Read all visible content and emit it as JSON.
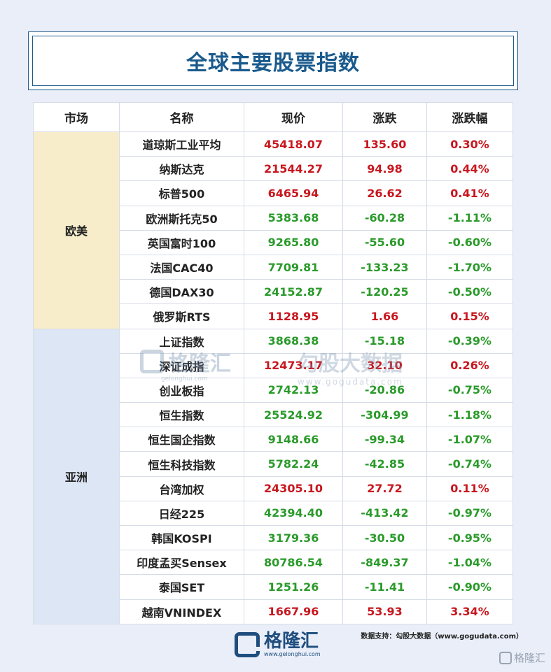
{
  "title": "全球主要股票指数",
  "headers": [
    "市场",
    "名称",
    "现价",
    "涨跌",
    "涨跌幅"
  ],
  "regions": [
    {
      "name": "欧美",
      "rows": [
        {
          "name": "道琼斯工业平均",
          "price": "45418.07",
          "change": "135.60",
          "pct": "0.30%",
          "dir": "up"
        },
        {
          "name": "纳斯达克",
          "price": "21544.27",
          "change": "94.98",
          "pct": "0.44%",
          "dir": "up"
        },
        {
          "name": "标普500",
          "price": "6465.94",
          "change": "26.62",
          "pct": "0.41%",
          "dir": "up"
        },
        {
          "name": "欧洲斯托克50",
          "price": "5383.68",
          "change": "-60.28",
          "pct": "-1.11%",
          "dir": "down"
        },
        {
          "name": "英国富时100",
          "price": "9265.80",
          "change": "-55.60",
          "pct": "-0.60%",
          "dir": "down"
        },
        {
          "name": "法国CAC40",
          "price": "7709.81",
          "change": "-133.23",
          "pct": "-1.70%",
          "dir": "down"
        },
        {
          "name": "德国DAX30",
          "price": "24152.87",
          "change": "-120.25",
          "pct": "-0.50%",
          "dir": "down"
        },
        {
          "name": "俄罗斯RTS",
          "price": "1128.95",
          "change": "1.66",
          "pct": "0.15%",
          "dir": "up"
        }
      ]
    },
    {
      "name": "亚洲",
      "rows": [
        {
          "name": "上证指数",
          "price": "3868.38",
          "change": "-15.18",
          "pct": "-0.39%",
          "dir": "down"
        },
        {
          "name": "深证成指",
          "price": "12473.17",
          "change": "32.10",
          "pct": "0.26%",
          "dir": "up"
        },
        {
          "name": "创业板指",
          "price": "2742.13",
          "change": "-20.86",
          "pct": "-0.75%",
          "dir": "down"
        },
        {
          "name": "恒生指数",
          "price": "25524.92",
          "change": "-304.99",
          "pct": "-1.18%",
          "dir": "down"
        },
        {
          "name": "恒生国企指数",
          "price": "9148.66",
          "change": "-99.34",
          "pct": "-1.07%",
          "dir": "down"
        },
        {
          "name": "恒生科技指数",
          "price": "5782.24",
          "change": "-42.85",
          "pct": "-0.74%",
          "dir": "down"
        },
        {
          "name": "台湾加权",
          "price": "24305.10",
          "change": "27.72",
          "pct": "0.11%",
          "dir": "up"
        },
        {
          "name": "日经225",
          "price": "42394.40",
          "change": "-413.42",
          "pct": "-0.97%",
          "dir": "down"
        },
        {
          "name": "韩国KOSPI",
          "price": "3179.36",
          "change": "-30.50",
          "pct": "-0.95%",
          "dir": "down"
        },
        {
          "name": "印度孟买Sensex",
          "price": "80786.54",
          "change": "-849.37",
          "pct": "-1.04%",
          "dir": "down"
        },
        {
          "name": "泰国SET",
          "price": "1251.26",
          "change": "-11.41",
          "pct": "-0.90%",
          "dir": "down"
        },
        {
          "name": "越南VNINDEX",
          "price": "1667.96",
          "change": "53.93",
          "pct": "3.34%",
          "dir": "up"
        }
      ]
    }
  ],
  "colors": {
    "up": "#c8171f",
    "down": "#2a9a2a",
    "title": "#1a5a8c"
  },
  "watermark": {
    "left_cn": "格隆汇",
    "left_url": "gelonghui.com",
    "right_cn": "勾股大数据",
    "right_url": "www.gogudata.com"
  },
  "source": "数据支持：勾股大数据（www.gogudata.com）",
  "footer": {
    "logo_cn": "格隆汇",
    "logo_url": "www.gelonghui.com"
  },
  "corner_watermark": "格隆汇"
}
